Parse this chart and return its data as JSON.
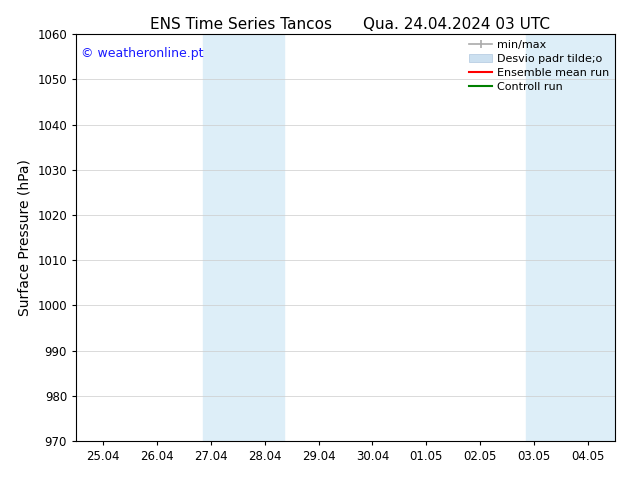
{
  "title_left": "ENS Time Series Tancos",
  "title_right": "Qua. 24.04.2024 03 UTC",
  "ylabel": "Surface Pressure (hPa)",
  "ylim": [
    970,
    1060
  ],
  "yticks": [
    970,
    980,
    990,
    1000,
    1010,
    1020,
    1030,
    1040,
    1050,
    1060
  ],
  "x_tick_labels": [
    "25.04",
    "26.04",
    "27.04",
    "28.04",
    "29.04",
    "30.04",
    "01.05",
    "02.05",
    "03.05",
    "04.05"
  ],
  "x_tick_positions": [
    0,
    1,
    2,
    3,
    4,
    5,
    6,
    7,
    8,
    9
  ],
  "xlim": [
    -0.5,
    9.5
  ],
  "shaded_regions": [
    {
      "xmin": 1.85,
      "xmax": 3.35,
      "color": "#ddeef8"
    },
    {
      "xmin": 7.85,
      "xmax": 9.5,
      "color": "#ddeef8"
    }
  ],
  "watermark_text": "© weatheronline.pt",
  "watermark_color": "#1a1aff",
  "watermark_fontsize": 9,
  "background_color": "#ffffff",
  "legend_minmax_color": "#aaaaaa",
  "legend_dev_color": "#cce0f0",
  "legend_ens_color": "#ff0000",
  "legend_ctrl_color": "#008000",
  "title_fontsize": 11,
  "axis_label_fontsize": 10,
  "tick_fontsize": 8.5,
  "legend_fontsize": 8
}
